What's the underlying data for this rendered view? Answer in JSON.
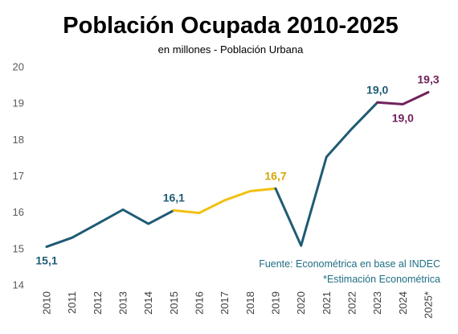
{
  "chart_data": {
    "type": "line",
    "title": "Población Ocupada 2010-2025",
    "subtitle": "en millones - Población Urbana",
    "x": [
      "2010",
      "2011",
      "2012",
      "2013",
      "2014",
      "2015",
      "2016",
      "2017",
      "2018",
      "2019",
      "2020",
      "2021",
      "2022",
      "2023",
      "2024",
      "2025*"
    ],
    "values": [
      15.05,
      15.3,
      15.68,
      16.07,
      15.68,
      16.05,
      15.98,
      16.33,
      16.58,
      16.65,
      15.08,
      17.52,
      18.3,
      19.02,
      18.97,
      19.3
    ],
    "segments": [
      {
        "from": 0,
        "to": 5,
        "color": "#1f5b74"
      },
      {
        "from": 5,
        "to": 9,
        "color": "#f2c112"
      },
      {
        "from": 9,
        "to": 13,
        "color": "#1f5b74"
      },
      {
        "from": 13,
        "to": 15,
        "color": "#70225a"
      }
    ],
    "ylim": [
      14,
      20
    ],
    "yticks": [
      "14",
      "15",
      "16",
      "17",
      "18",
      "19",
      "20"
    ],
    "grid": false,
    "data_labels": [
      {
        "index": 0,
        "text": "15,1",
        "color": "#1f5b74",
        "placement": "below"
      },
      {
        "index": 5,
        "text": "16,1",
        "color": "#1f5b74",
        "placement": "above"
      },
      {
        "index": 9,
        "text": "16,7",
        "color": "#d4a70a",
        "placement": "above"
      },
      {
        "index": 13,
        "text": "19,0",
        "color": "#1f5b74",
        "placement": "above"
      },
      {
        "index": 14,
        "text": "19,0",
        "color": "#70225a",
        "placement": "below"
      },
      {
        "index": 15,
        "text": "19,3",
        "color": "#70225a",
        "placement": "above"
      }
    ],
    "notes": [
      {
        "text": "Fuente: Econométrica en base al INDEC",
        "color": "#1f6e84"
      },
      {
        "text": "*Estimación Econométrica",
        "color": "#1f6e84"
      }
    ]
  }
}
